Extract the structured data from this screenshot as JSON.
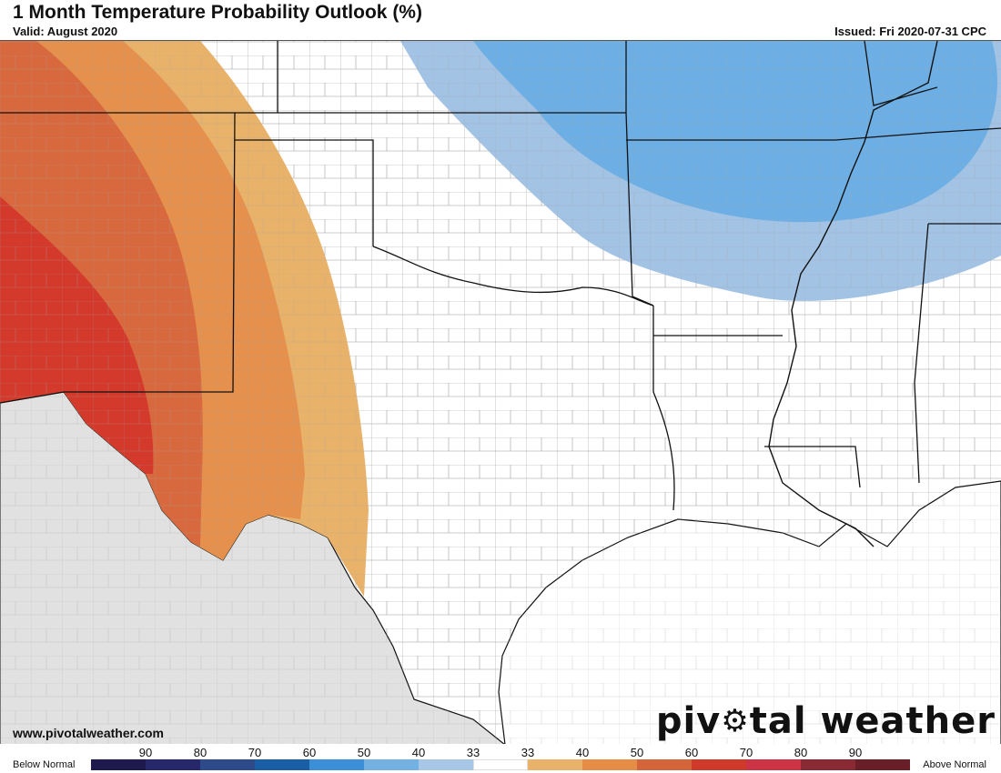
{
  "header": {
    "title": "1 Month Temperature Probability Outlook (%)",
    "valid": "Valid: August 2020",
    "issued": "Issued: Fri 2020-07-31 CPC"
  },
  "footer": {
    "website": "www.pivotalweather.com",
    "brand_before": "piv",
    "brand_after": "tal weather",
    "brand_icon": "gear-icon"
  },
  "legend": {
    "left_label": "Below Normal",
    "right_label": "Above Normal",
    "ticks": [
      "90",
      "80",
      "70",
      "60",
      "50",
      "40",
      "33",
      "33",
      "40",
      "50",
      "60",
      "70",
      "80",
      "90"
    ],
    "colors": [
      "#1f1a4e",
      "#27276b",
      "#2d4a8a",
      "#1a5ea5",
      "#3a8fd6",
      "#74b1e3",
      "#a8c6e6",
      "#ffffff",
      "#e8b26a",
      "#e58c46",
      "#d4653b",
      "#cf3a2b",
      "#cc3344",
      "#8a2a35",
      "#6a1f28"
    ]
  },
  "map": {
    "colors": {
      "below_40": "#9ec0e3",
      "below_50": "#6aaee4",
      "above_40": "#e8b26a",
      "above_50": "#e5904c",
      "above_60": "#d8693e",
      "above_70": "#d33a2c",
      "mexico": "#e1e1e1",
      "state_border": "#111111",
      "county_border": "#999999"
    }
  }
}
